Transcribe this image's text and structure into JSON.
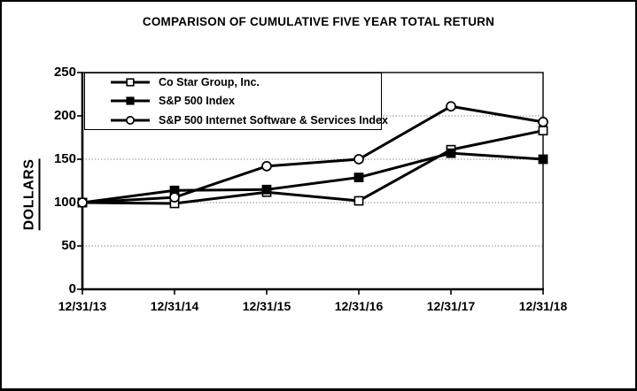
{
  "chart_data": {
    "type": "line",
    "title": "COMPARISON OF CUMULATIVE FIVE YEAR TOTAL RETURN",
    "ylabel": "DOLLARS",
    "xlabel": "",
    "categories": [
      "12/31/13",
      "12/31/14",
      "12/31/15",
      "12/31/16",
      "12/31/17",
      "12/31/18"
    ],
    "y_ticks": [
      0,
      50,
      100,
      150,
      200,
      250
    ],
    "ylim": [
      0,
      250
    ],
    "grid": "horizontal-dotted-gray",
    "legend_position": "top-left-inside",
    "line_color": "#000000",
    "background_color": "#ffffff",
    "gridline_color": "#8c8c8c",
    "series": [
      {
        "id": "costar",
        "name": "Co Star Group, Inc.",
        "marker": "square-open",
        "values": [
          100,
          99,
          112,
          102,
          161,
          183
        ]
      },
      {
        "id": "sp500",
        "name": "S&P 500 Index",
        "marker": "square-filled",
        "values": [
          100,
          114,
          115,
          129,
          157,
          150
        ]
      },
      {
        "id": "sp-internet",
        "name": "S&P 500 Internet Software & Services Index",
        "marker": "circle-open",
        "values": [
          100,
          106,
          142,
          150,
          211,
          193
        ]
      }
    ]
  }
}
